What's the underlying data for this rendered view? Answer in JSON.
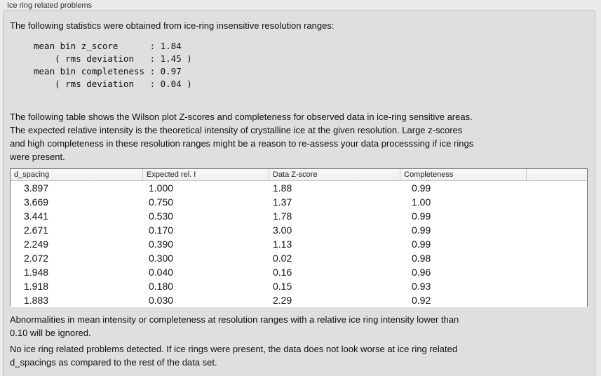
{
  "colors": {
    "page_bg": "#eaeaea",
    "panel_bg": "#dfdfdf",
    "table_bg": "#ffffff",
    "table_border": "#6e6e6e",
    "header_bg": "#f4f4f4",
    "text": "#111111"
  },
  "group": {
    "label": "Ice ring related problems"
  },
  "intro": {
    "text": "The following statistics were obtained from ice-ring insensitive resolution ranges:"
  },
  "stats": {
    "lines": [
      "mean bin z_score      : 1.84",
      "    ( rms deviation   : 1.45 )",
      "mean bin completeness : 0.97",
      "    ( rms deviation   : 0.04 )"
    ]
  },
  "description": {
    "lines": [
      "The following table shows the Wilson plot Z-scores and completeness for observed data in ice-ring sensitive areas.",
      "The expected relative intensity is the theoretical intensity of crystalline ice at the given resolution. Large z-scores",
      "and high completeness in these resolution ranges might be a reason to re-assess your data processsing if ice rings",
      "were present."
    ]
  },
  "table": {
    "columns": [
      "d_spacing",
      "Expected rel. I",
      "Data Z-score",
      "Completeness",
      ""
    ],
    "rows": [
      [
        "3.897",
        "1.000",
        "1.88",
        "0.99"
      ],
      [
        "3.669",
        "0.750",
        "1.37",
        "1.00"
      ],
      [
        "3.441",
        "0.530",
        "1.78",
        "0.99"
      ],
      [
        "2.671",
        "0.170",
        "3.00",
        "0.99"
      ],
      [
        "2.249",
        "0.390",
        "1.13",
        "0.99"
      ],
      [
        "2.072",
        "0.300",
        "0.02",
        "0.98"
      ],
      [
        "1.948",
        "0.040",
        "0.16",
        "0.96"
      ],
      [
        "1.918",
        "0.180",
        "0.15",
        "0.93"
      ],
      [
        "1.883",
        "0.030",
        "2.29",
        "0.92"
      ]
    ]
  },
  "notes": {
    "abnormalities": {
      "lines": [
        "Abnormalities in mean intensity or completeness at resolution ranges with a relative ice ring intensity lower than",
        "0.10 will be ignored."
      ]
    },
    "conclusion": {
      "lines": [
        "No ice ring related problems detected. If ice rings were present, the data does not look worse at ice ring related",
        "d_spacings as compared to the rest of the data set."
      ]
    }
  }
}
